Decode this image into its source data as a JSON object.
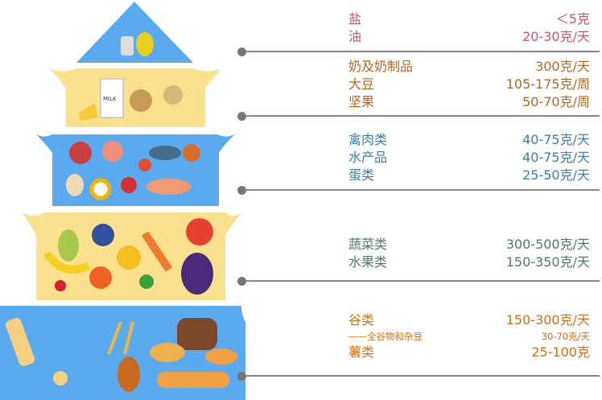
{
  "colors": {
    "tier_blue": "#5aaaf0",
    "tier_yellow": "#fbe18e",
    "salt_oil": "#c9566a",
    "dairy": "#b8661b",
    "meat": "#3b7fa6",
    "veg": "#4f7a6a",
    "grain": "#d07010"
  },
  "tiers": [
    {
      "items": [
        {
          "name": "盐",
          "amount": "＜5克"
        },
        {
          "name": "油",
          "amount": "20-30克/天"
        }
      ]
    },
    {
      "items": [
        {
          "name": "奶及奶制品",
          "amount": "300克/天"
        },
        {
          "name": "大豆",
          "amount": "105-175克/周"
        },
        {
          "name": "坚果",
          "amount": "50-70克/周"
        }
      ]
    },
    {
      "items": [
        {
          "name": "禽肉类",
          "amount": "40-75克/天"
        },
        {
          "name": "水产品",
          "amount": "40-75克/天"
        },
        {
          "name": "蛋类",
          "amount": "25-50克/天"
        }
      ]
    },
    {
      "items": [
        {
          "name": "蔬菜类",
          "amount": "300-500克/天"
        },
        {
          "name": "水果类",
          "amount": "150-350克/天"
        }
      ]
    },
    {
      "items": [
        {
          "name": "谷类",
          "amount": "150-300克/天"
        },
        {
          "name": "——全谷物和杂豆",
          "amount": "30-70克/天"
        },
        {
          "name": "薯类",
          "amount": "25-100克"
        }
      ]
    }
  ],
  "milk_label": "MILK"
}
